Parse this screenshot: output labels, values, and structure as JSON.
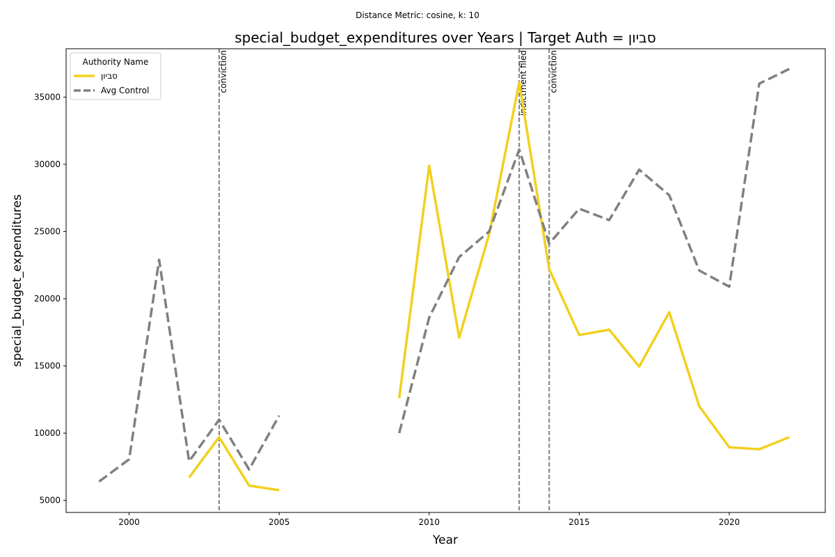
{
  "chart_data": {
    "type": "line",
    "suptitle": "Distance Metric: cosine, k: 10",
    "title": "special_budget_expenditures over Years | Target Auth = סביון",
    "xlabel": "Year",
    "ylabel": "special_budget_expenditures",
    "xlim": [
      1997.9,
      2023.2
    ],
    "ylim": [
      4100,
      38600
    ],
    "xticks": [
      2000,
      2005,
      2010,
      2015,
      2020
    ],
    "yticks": [
      5000,
      10000,
      15000,
      20000,
      25000,
      30000,
      35000
    ],
    "legend": {
      "title": "Authority Name",
      "placement": "top-left"
    },
    "series": [
      {
        "name": "סביון",
        "color": "#f2d01e",
        "style": "solid",
        "segments": [
          [
            [
              2002,
              6700
            ],
            [
              2003,
              9700
            ],
            [
              2004,
              6100
            ],
            [
              2005,
              5750
            ]
          ],
          [
            [
              2009,
              12600
            ],
            [
              2010,
              29900
            ],
            [
              2011,
              17100
            ],
            [
              2012,
              24800
            ],
            [
              2013,
              36100
            ],
            [
              2014,
              22200
            ],
            [
              2015,
              17300
            ],
            [
              2016,
              17700
            ],
            [
              2017,
              14950
            ],
            [
              2018,
              19000
            ],
            [
              2019,
              12000
            ],
            [
              2020,
              8950
            ],
            [
              2021,
              8800
            ],
            [
              2022,
              9700
            ]
          ]
        ]
      },
      {
        "name": "Avg Control",
        "color": "#808080",
        "style": "dashed",
        "segments": [
          [
            [
              1999,
              6400
            ],
            [
              2000,
              8050
            ],
            [
              2001,
              22900
            ],
            [
              2002,
              7900
            ],
            [
              2003,
              11000
            ],
            [
              2004,
              7300
            ],
            [
              2005,
              11300
            ]
          ],
          [
            [
              2009,
              10000
            ],
            [
              2010,
              18600
            ],
            [
              2011,
              23100
            ],
            [
              2012,
              25000
            ],
            [
              2013,
              31100
            ],
            [
              2014,
              24100
            ],
            [
              2015,
              26700
            ],
            [
              2016,
              25850
            ],
            [
              2017,
              29600
            ],
            [
              2018,
              27700
            ],
            [
              2019,
              22100
            ],
            [
              2020,
              20900
            ],
            [
              2021,
              36000
            ],
            [
              2022,
              37100
            ]
          ]
        ]
      }
    ],
    "events": [
      {
        "x": 2003,
        "label": "conviction"
      },
      {
        "x": 2013,
        "label": "indictment filed"
      },
      {
        "x": 2014,
        "label": "conviction"
      }
    ]
  }
}
